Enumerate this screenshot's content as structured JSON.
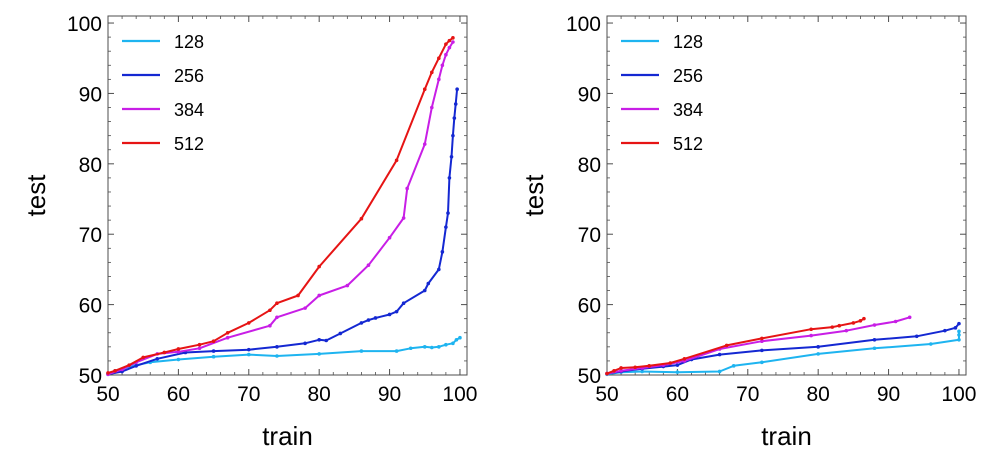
{
  "chart_data": [
    {
      "type": "line",
      "xlabel": "train",
      "ylabel": "test",
      "xlim": [
        50,
        101
      ],
      "ylim": [
        50,
        101
      ],
      "xticks": [
        50,
        60,
        70,
        80,
        90,
        100
      ],
      "yticks": [
        50,
        60,
        70,
        80,
        90,
        100
      ],
      "legend_position": "top-left",
      "series": [
        {
          "name": "128",
          "color": "#1EB4F0",
          "points": [
            [
              50,
              50.2
            ],
            [
              51,
              50.6
            ],
            [
              53,
              51.2
            ],
            [
              56,
              51.8
            ],
            [
              60,
              52.2
            ],
            [
              65,
              52.6
            ],
            [
              70,
              52.9
            ],
            [
              74,
              52.7
            ],
            [
              80,
              53.0
            ],
            [
              86,
              53.4
            ],
            [
              91,
              53.4
            ],
            [
              93,
              53.8
            ],
            [
              95,
              54.0
            ],
            [
              96,
              53.9
            ],
            [
              97,
              54.0
            ],
            [
              98,
              54.3
            ],
            [
              99,
              54.5
            ],
            [
              99.5,
              55.0
            ],
            [
              100,
              55.3
            ]
          ]
        },
        {
          "name": "256",
          "color": "#1428D2",
          "points": [
            [
              50,
              50.1
            ],
            [
              52,
              50.5
            ],
            [
              54,
              51.3
            ],
            [
              57,
              52.3
            ],
            [
              61,
              53.2
            ],
            [
              65,
              53.4
            ],
            [
              70,
              53.6
            ],
            [
              74,
              54.0
            ],
            [
              78,
              54.5
            ],
            [
              80,
              55.0
            ],
            [
              81,
              54.9
            ],
            [
              83,
              55.9
            ],
            [
              86,
              57.4
            ],
            [
              87,
              57.8
            ],
            [
              88,
              58.1
            ],
            [
              90,
              58.6
            ],
            [
              91,
              59.0
            ],
            [
              92,
              60.2
            ],
            [
              95,
              62.0
            ],
            [
              95.5,
              63.0
            ],
            [
              97,
              65.0
            ],
            [
              97.5,
              67.5
            ],
            [
              98,
              71.0
            ],
            [
              98.3,
              73.0
            ],
            [
              98.5,
              78.0
            ],
            [
              98.8,
              81.0
            ],
            [
              99,
              84.0
            ],
            [
              99.2,
              86.5
            ],
            [
              99.4,
              88.5
            ],
            [
              99.6,
              90.6
            ]
          ]
        },
        {
          "name": "384",
          "color": "#C81EE6",
          "points": [
            [
              50,
              50.1
            ],
            [
              52,
              50.8
            ],
            [
              54,
              51.8
            ],
            [
              57,
              53.0
            ],
            [
              60,
              53.3
            ],
            [
              63,
              53.8
            ],
            [
              67,
              55.3
            ],
            [
              73,
              57.0
            ],
            [
              74,
              58.2
            ],
            [
              78,
              59.5
            ],
            [
              80,
              61.3
            ],
            [
              84,
              62.7
            ],
            [
              87,
              65.6
            ],
            [
              90,
              69.5
            ],
            [
              92,
              72.3
            ],
            [
              92.5,
              76.5
            ],
            [
              95,
              82.8
            ],
            [
              96,
              88.0
            ],
            [
              97,
              92.0
            ],
            [
              97.5,
              94.0
            ],
            [
              98,
              95.5
            ],
            [
              98.5,
              96.5
            ],
            [
              99,
              97.3
            ]
          ]
        },
        {
          "name": "512",
          "color": "#E61414",
          "points": [
            [
              50,
              50.3
            ],
            [
              51,
              50.6
            ],
            [
              53,
              51.4
            ],
            [
              55,
              52.5
            ],
            [
              58,
              53.2
            ],
            [
              60,
              53.7
            ],
            [
              63,
              54.3
            ],
            [
              65,
              54.8
            ],
            [
              67,
              56.0
            ],
            [
              70,
              57.4
            ],
            [
              73,
              59.2
            ],
            [
              74,
              60.2
            ],
            [
              77,
              61.3
            ],
            [
              80,
              65.4
            ],
            [
              86,
              72.2
            ],
            [
              91,
              80.5
            ],
            [
              95,
              90.6
            ],
            [
              96,
              93.0
            ],
            [
              97,
              95.0
            ],
            [
              98,
              97.0
            ],
            [
              98.5,
              97.5
            ],
            [
              99,
              97.9
            ]
          ]
        }
      ]
    },
    {
      "type": "line",
      "xlabel": "train",
      "ylabel": "test",
      "xlim": [
        50,
        101
      ],
      "ylim": [
        50,
        101
      ],
      "xticks": [
        50,
        60,
        70,
        80,
        90,
        100
      ],
      "yticks": [
        50,
        60,
        70,
        80,
        90,
        100
      ],
      "legend_position": "top-left",
      "series": [
        {
          "name": "128",
          "color": "#1EB4F0",
          "points": [
            [
              50,
              50.1
            ],
            [
              52,
              50.4
            ],
            [
              55,
              50.5
            ],
            [
              60,
              50.4
            ],
            [
              66,
              50.5
            ],
            [
              68,
              51.3
            ],
            [
              72,
              51.8
            ],
            [
              80,
              53.0
            ],
            [
              88,
              53.8
            ],
            [
              96,
              54.4
            ],
            [
              100,
              55.0
            ],
            [
              100,
              55.7
            ],
            [
              100,
              56.2
            ]
          ]
        },
        {
          "name": "256",
          "color": "#1428D2",
          "points": [
            [
              50,
              50.2
            ],
            [
              52,
              50.5
            ],
            [
              55,
              50.9
            ],
            [
              58,
              51.2
            ],
            [
              60,
              51.4
            ],
            [
              62,
              52.2
            ],
            [
              66,
              52.9
            ],
            [
              72,
              53.5
            ],
            [
              80,
              54.0
            ],
            [
              88,
              55.0
            ],
            [
              94,
              55.5
            ],
            [
              98,
              56.3
            ],
            [
              99.5,
              56.7
            ],
            [
              100,
              57.3
            ]
          ]
        },
        {
          "name": "384",
          "color": "#C81EE6",
          "points": [
            [
              50,
              50.2
            ],
            [
              52,
              50.6
            ],
            [
              55,
              51.0
            ],
            [
              58,
              51.4
            ],
            [
              61,
              52.0
            ],
            [
              66,
              53.7
            ],
            [
              72,
              54.8
            ],
            [
              79,
              55.6
            ],
            [
              84,
              56.3
            ],
            [
              88,
              57.1
            ],
            [
              91,
              57.6
            ],
            [
              93,
              58.2
            ]
          ]
        },
        {
          "name": "512",
          "color": "#E61414",
          "points": [
            [
              50,
              50.2
            ],
            [
              51,
              50.6
            ],
            [
              52,
              51.0
            ],
            [
              54,
              51.1
            ],
            [
              56,
              51.3
            ],
            [
              59,
              51.7
            ],
            [
              61,
              52.3
            ],
            [
              67,
              54.2
            ],
            [
              72,
              55.2
            ],
            [
              79,
              56.5
            ],
            [
              82,
              56.8
            ],
            [
              83,
              57.0
            ],
            [
              85,
              57.4
            ],
            [
              86,
              57.7
            ],
            [
              86.5,
              58.0
            ]
          ]
        }
      ]
    }
  ]
}
